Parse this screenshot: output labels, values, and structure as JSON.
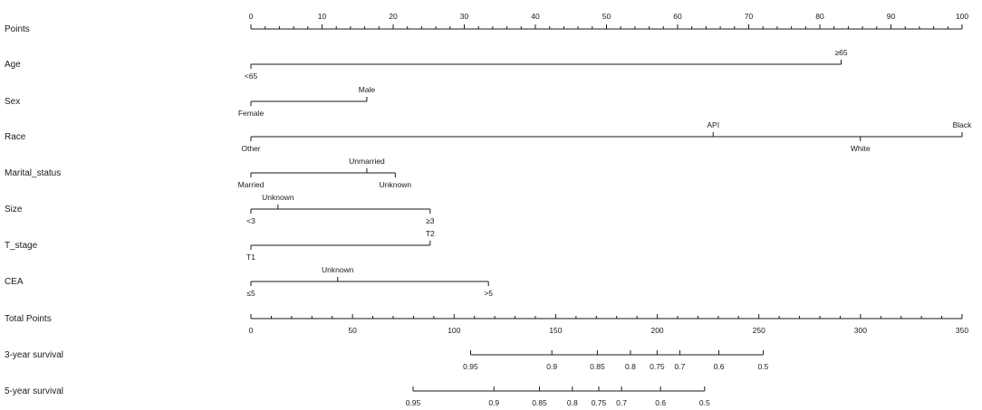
{
  "chart_data": {
    "type": "nomogram",
    "points_scale": {
      "label": "Points",
      "min": 0,
      "max": 100,
      "major_ticks": [
        0,
        10,
        20,
        30,
        40,
        50,
        60,
        70,
        80,
        90,
        100
      ],
      "minor_step": 2
    },
    "variables": [
      {
        "name": "Age",
        "levels": [
          {
            "label": "<65",
            "points": 0,
            "side": "below"
          },
          {
            "label": "≥65",
            "points": 83,
            "side": "above"
          }
        ]
      },
      {
        "name": "Sex",
        "levels": [
          {
            "label": "Female",
            "points": 0,
            "side": "below"
          },
          {
            "label": "Male",
            "points": 16.3,
            "side": "above"
          }
        ]
      },
      {
        "name": "Race",
        "levels": [
          {
            "label": "Other",
            "points": 0,
            "side": "below"
          },
          {
            "label": "API",
            "points": 65,
            "side": "above"
          },
          {
            "label": "White",
            "points": 85.7,
            "side": "below"
          },
          {
            "label": "Black",
            "points": 100,
            "side": "above"
          }
        ]
      },
      {
        "name": "Marital_status",
        "levels": [
          {
            "label": "Married",
            "points": 0,
            "side": "below"
          },
          {
            "label": "Unmarried",
            "points": 16.3,
            "side": "above"
          },
          {
            "label": "Unknown",
            "points": 20.3,
            "side": "below"
          }
        ]
      },
      {
        "name": "Size",
        "levels": [
          {
            "label": "<3",
            "points": 0,
            "side": "below"
          },
          {
            "label": "Unknown",
            "points": 3.8,
            "side": "above"
          },
          {
            "label": "≥3",
            "points": 25.2,
            "side": "below"
          }
        ]
      },
      {
        "name": "T_stage",
        "levels": [
          {
            "label": "T1",
            "points": 0,
            "side": "below"
          },
          {
            "label": "T2",
            "points": 25.2,
            "side": "above"
          }
        ]
      },
      {
        "name": "CEA",
        "levels": [
          {
            "label": "≤5",
            "points": 0,
            "side": "below"
          },
          {
            "label": "Unknown",
            "points": 12.2,
            "side": "above"
          },
          {
            "label": ">5",
            "points": 33.4,
            "side": "below"
          }
        ]
      }
    ],
    "total_points_scale": {
      "label": "Total Points",
      "min": 0,
      "max": 350,
      "major_ticks": [
        0,
        50,
        100,
        150,
        200,
        250,
        300,
        350
      ],
      "minor_step": 10
    },
    "survival_scales": [
      {
        "name": "3-year survival",
        "ticks": [
          {
            "label": "0.95",
            "total_points": 108.1
          },
          {
            "label": "0.9",
            "total_points": 148.1
          },
          {
            "label": "0.85",
            "total_points": 170.5
          },
          {
            "label": "0.8",
            "total_points": 186.8
          },
          {
            "label": "0.75",
            "total_points": 199.9
          },
          {
            "label": "0.7",
            "total_points": 211.1
          },
          {
            "label": "0.6",
            "total_points": 230.3
          },
          {
            "label": "0.5",
            "total_points": 252.1
          }
        ]
      },
      {
        "name": "5-year survival",
        "ticks": [
          {
            "label": "0.95",
            "total_points": 79.8
          },
          {
            "label": "0.9",
            "total_points": 119.6
          },
          {
            "label": "0.85",
            "total_points": 142.0
          },
          {
            "label": "0.8",
            "total_points": 158.2
          },
          {
            "label": "0.75",
            "total_points": 171.2
          },
          {
            "label": "0.7",
            "total_points": 182.4
          },
          {
            "label": "0.6",
            "total_points": 201.6
          },
          {
            "label": "0.5",
            "total_points": 223.3
          }
        ]
      }
    ]
  }
}
